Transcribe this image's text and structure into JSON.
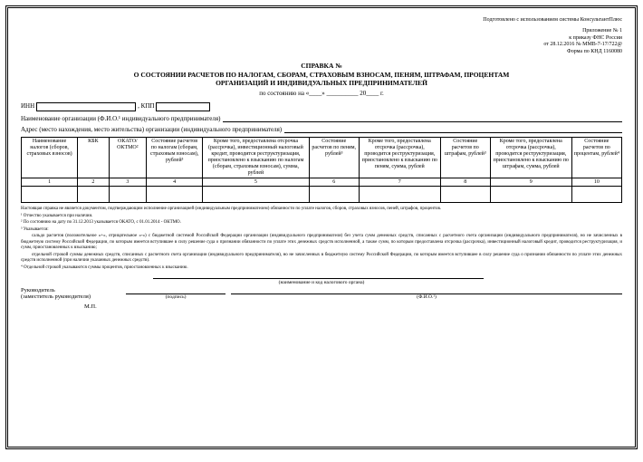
{
  "header": {
    "system": "Подготовлено с использованием системы КонсультантПлюс",
    "app_no": "Приложение № 1",
    "order": "к приказу ФНС России",
    "order_date": "от 28.12.2016 № ММВ-7-17/722@",
    "form_code": "Форма по КНД 1160080"
  },
  "title": {
    "l1": "СПРАВКА №",
    "l2": "О СОСТОЯНИИ РАСЧЕТОВ ПО НАЛОГАМ, СБОРАМ, СТРАХОВЫМ ВЗНОСАМ, ПЕНЯМ, ШТРАФАМ, ПРОЦЕНТАМ",
    "l3": "ОРГАНИЗАЦИЙ И ИНДИВИДУАЛЬНЫХ ПРЕДПРИНИМАТЕЛЕЙ",
    "date_tpl": "по состоянию на «____» __________ 20____ г."
  },
  "fields": {
    "inn": "ИНН",
    "kpp": ", КПП",
    "org_name": "Наименование организации (Ф.И.О.¹ индивидуального предпринимателя)",
    "address": "Адрес (место нахождения, место жительства) организации (индивидуального предпринимателя)"
  },
  "cols": [
    "Наименование налогов (сборов, страховых взносов)",
    "КБК",
    "ОКАТО/\nОКТМО²",
    "Состояние расчетов по налогам (сборам, страховым взносам), рублей³",
    "Кроме того, предоставлена отсрочка (рассрочка), инвестиционный налоговый кредит, проводится реструктуризация, приостановлено к взысканию по налогам (сборам, страховым взносам), сумма, рублей",
    "Состояние расчетов по пеням, рублей³",
    "Кроме того, предоставлена отсрочка (рассрочка), проводится реструктуризация, приостановлено к взысканию по пеням, сумма, рублей",
    "Состояние расчетов по штрафам, рублей³",
    "Кроме того, предоставлена отсрочка (рассрочка), проводится реструктуризация, приостановлено к взысканию по штрафам, сумма, рублей",
    "Состояние расчетов по процентам, рублей⁴"
  ],
  "nums": [
    "1",
    "2",
    "3",
    "4",
    "5",
    "6",
    "7",
    "8",
    "9",
    "10"
  ],
  "widths": [
    "9%",
    "5%",
    "6%",
    "9%",
    "17%",
    "8%",
    "13%",
    "8%",
    "13%",
    "8%"
  ],
  "footnotes": {
    "intro": "Настоящая справка не является документом, подтверждающим исполнение организацией (индивидуальным предпринимателем) обязанности по уплате налогов, сборов, страховых взносов, пеней, штрафов, процентов.",
    "n1": "¹ Отчество указывается при наличии.",
    "n2": "² По состоянию на дату по 31.12.2013 указывается ОКАТО, с 01.01.2014 - ОКТМО.",
    "n3": "³ Указывается:",
    "n3b": "сальдо расчетов (положительное «+», отрицательное «-») с бюджетной системой Российской Федерации организации (индивидуального предпринимателя) без учета сумм денежных средств, списанных с расчетного счета организации (индивидуального предпринимателя), но не зачисленных в бюджетную систему Российской Федерации, по которым имеется вступившее в силу решение суда о признании обязанности по уплате этих денежных средств исполненной, а также сумм, по которым предоставлена отсрочка (рассрочка), инвестиционный налоговый кредит, проводится реструктуризация, и сумм, приостановленных к взысканию;",
    "n3c": "отдельной строкой суммы денежных средств, списанных с расчетного счета организации (индивидуального предпринимателя), но не зачисленных в бюджетную систему Российской Федерации, по которым имеется вступившее в силу решение суда о признании обязанности по уплате этих денежных средств исполненной (при наличии указанных денежных средств).",
    "n4": "⁴ Отдельной строкой указываются суммы процентов, приостановленных к взысканию."
  },
  "sig": {
    "tax_auth": "(наименование и код налогового органа)",
    "head": "Руководитель",
    "deputy": "(заместитель руководителя)",
    "sign": "(подпись)",
    "fio": "(Ф.И.О.¹)",
    "mp": "М.П."
  }
}
